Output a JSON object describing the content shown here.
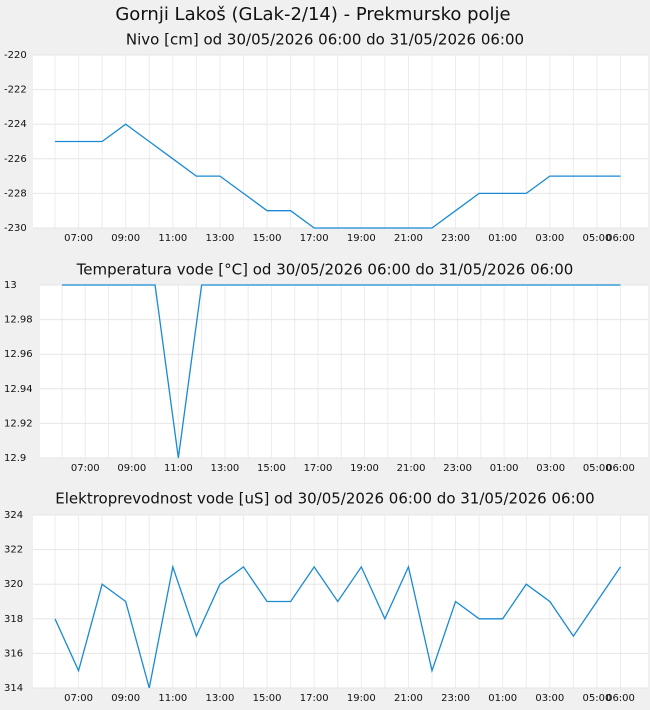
{
  "title": "Gornji Lakoš (GLak-2/14) - Prekmursko polje",
  "chart_data": [
    {
      "type": "line",
      "title": "Nivo [cm] od 30/05/2026 06:00 do 31/05/2026 06:00",
      "categories": [
        null,
        "07:00",
        null,
        "09:00",
        null,
        "11:00",
        null,
        "13:00",
        null,
        "15:00",
        null,
        "17:00",
        null,
        "19:00",
        null,
        "21:00",
        null,
        "23:00",
        null,
        "01:00",
        null,
        "03:00",
        null,
        "05:00",
        "06:00"
      ],
      "values": [
        -225,
        -225,
        -225,
        -224,
        -225,
        -226,
        -227,
        -227,
        -228,
        -229,
        -229,
        -230,
        -230,
        -230,
        -230,
        -230,
        -230,
        -229,
        -228,
        -228,
        -228,
        -227,
        -227,
        -227,
        -227
      ],
      "color": "#1a8ad4",
      "ylim": [
        -230,
        -220
      ],
      "yticks": [
        -220,
        -222,
        -224,
        -226,
        -228,
        -230
      ],
      "grid": true
    },
    {
      "type": "line",
      "title": "Temperatura vode [°C] od 30/05/2026 06:00 do 31/05/2026 06:00",
      "categories": [
        null,
        "07:00",
        null,
        "09:00",
        null,
        "11:00",
        null,
        "13:00",
        null,
        "15:00",
        null,
        "17:00",
        null,
        "19:00",
        null,
        "21:00",
        null,
        "23:00",
        null,
        "01:00",
        null,
        "03:00",
        null,
        "05:00",
        "06:00"
      ],
      "values": [
        13,
        13,
        13,
        13,
        13,
        12.9,
        13,
        13,
        13,
        13,
        13,
        13,
        13,
        13,
        13,
        13,
        13,
        13,
        13,
        13,
        13,
        13,
        13,
        13,
        13
      ],
      "color": "#1a8ad4",
      "ylim": [
        12.9,
        13
      ],
      "yticks": [
        13,
        12.98,
        12.96,
        12.94,
        12.92,
        12.9
      ],
      "grid": true
    },
    {
      "type": "line",
      "title": "Elektroprevodnost vode [uS] od 30/05/2026 06:00 do 31/05/2026 06:00",
      "categories": [
        null,
        "07:00",
        null,
        "09:00",
        null,
        "11:00",
        null,
        "13:00",
        null,
        "15:00",
        null,
        "17:00",
        null,
        "19:00",
        null,
        "21:00",
        null,
        "23:00",
        null,
        "01:00",
        null,
        "03:00",
        null,
        "05:00",
        "06:00"
      ],
      "values": [
        318,
        315,
        320,
        319,
        314,
        321,
        317,
        320,
        321,
        319,
        319,
        321,
        319,
        321,
        318,
        321,
        315,
        319,
        318,
        318,
        320,
        319,
        317,
        319,
        321
      ],
      "color": "#1a8ad4",
      "ylim": [
        314,
        324
      ],
      "yticks": [
        324,
        322,
        320,
        318,
        316,
        314
      ],
      "grid": true
    }
  ]
}
